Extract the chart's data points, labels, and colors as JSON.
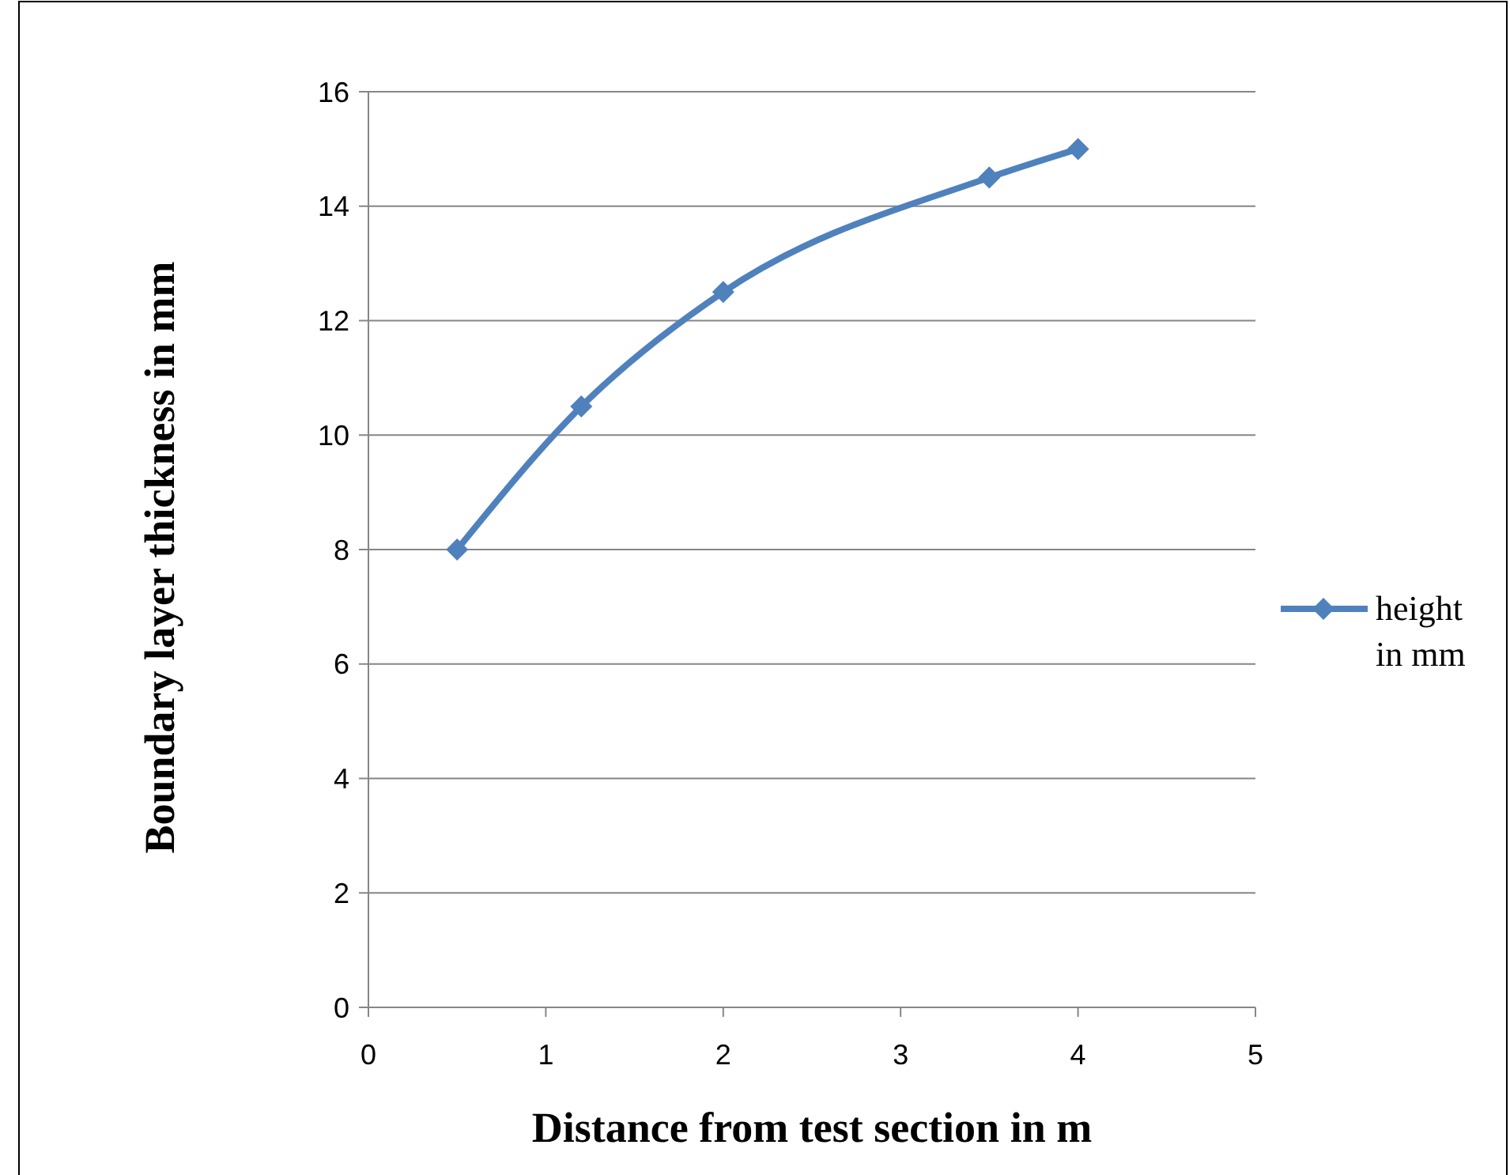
{
  "chart_data": {
    "type": "line",
    "xlabel": "Distance from test section in m",
    "ylabel": "Boundary layer thickness in mm",
    "x": [
      0.5,
      1.2,
      2,
      3.5,
      4
    ],
    "series": [
      {
        "name": "height in mm",
        "color": "#4f81bd",
        "values": [
          8,
          10.5,
          12.5,
          14.5,
          15
        ]
      }
    ],
    "xlim": [
      0,
      5
    ],
    "xticks": [
      0,
      1,
      2,
      3,
      4,
      5
    ],
    "ylim": [
      0,
      16
    ],
    "yticks": [
      0,
      2,
      4,
      6,
      8,
      10,
      12,
      14,
      16
    ],
    "grid": "y",
    "legend": "right",
    "marker": "diamond",
    "line_style": "solid"
  }
}
